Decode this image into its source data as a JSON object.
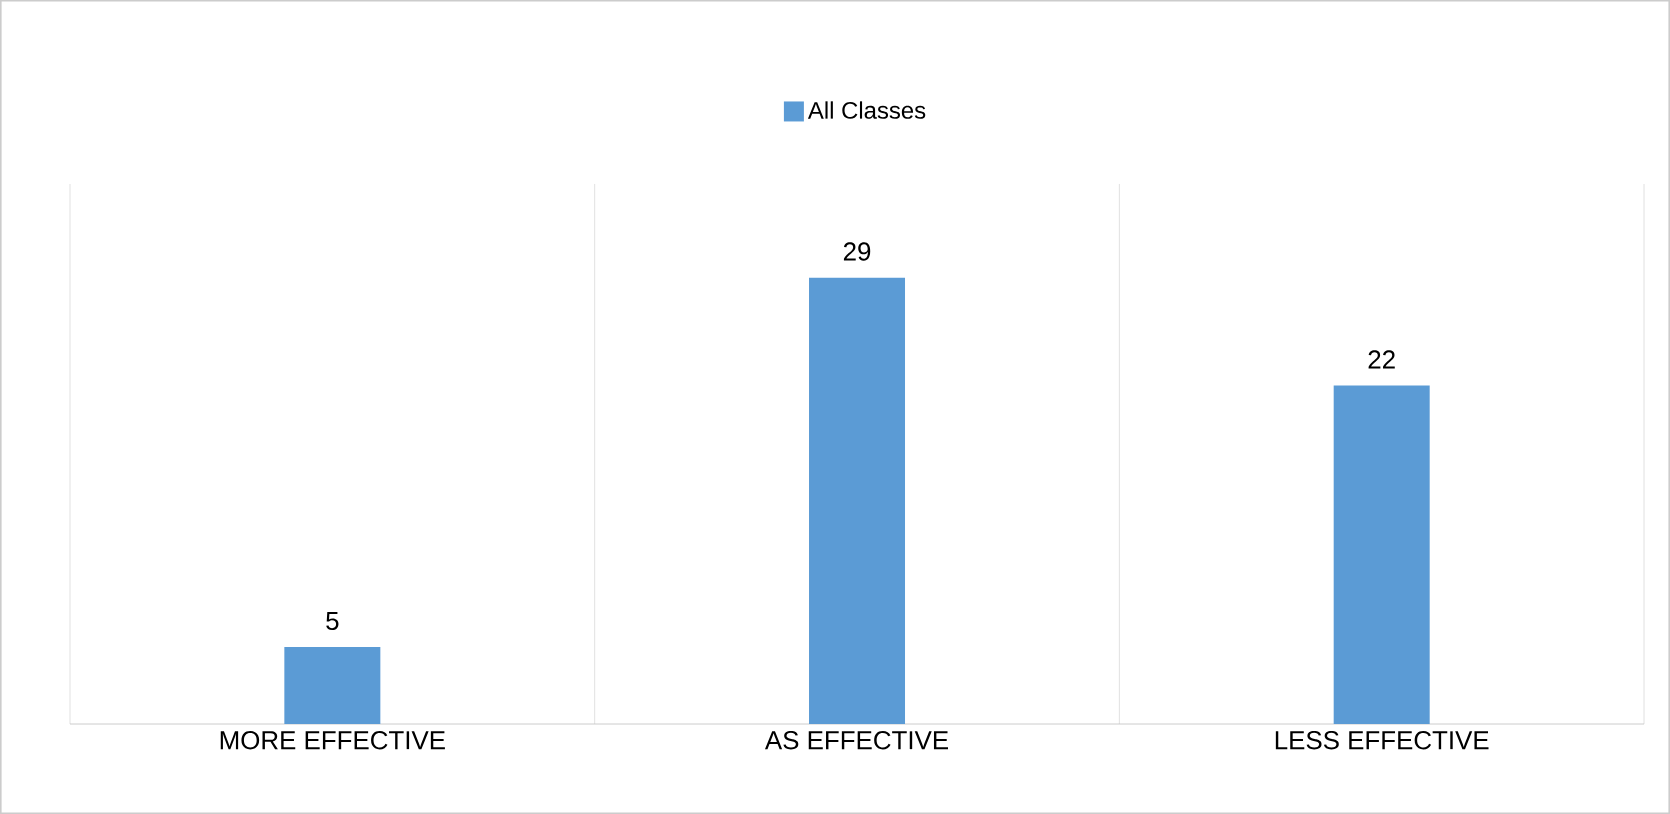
{
  "chart_data": {
    "type": "bar",
    "categories": [
      "MORE EFFECTIVE",
      "AS EFFECTIVE",
      "LESS EFFECTIVE"
    ],
    "series": [
      {
        "name": "All Classes",
        "color": "#5b9bd5",
        "values": [
          5,
          29,
          22
        ]
      }
    ],
    "data_labels": true,
    "grid": "x",
    "legend": "top"
  }
}
